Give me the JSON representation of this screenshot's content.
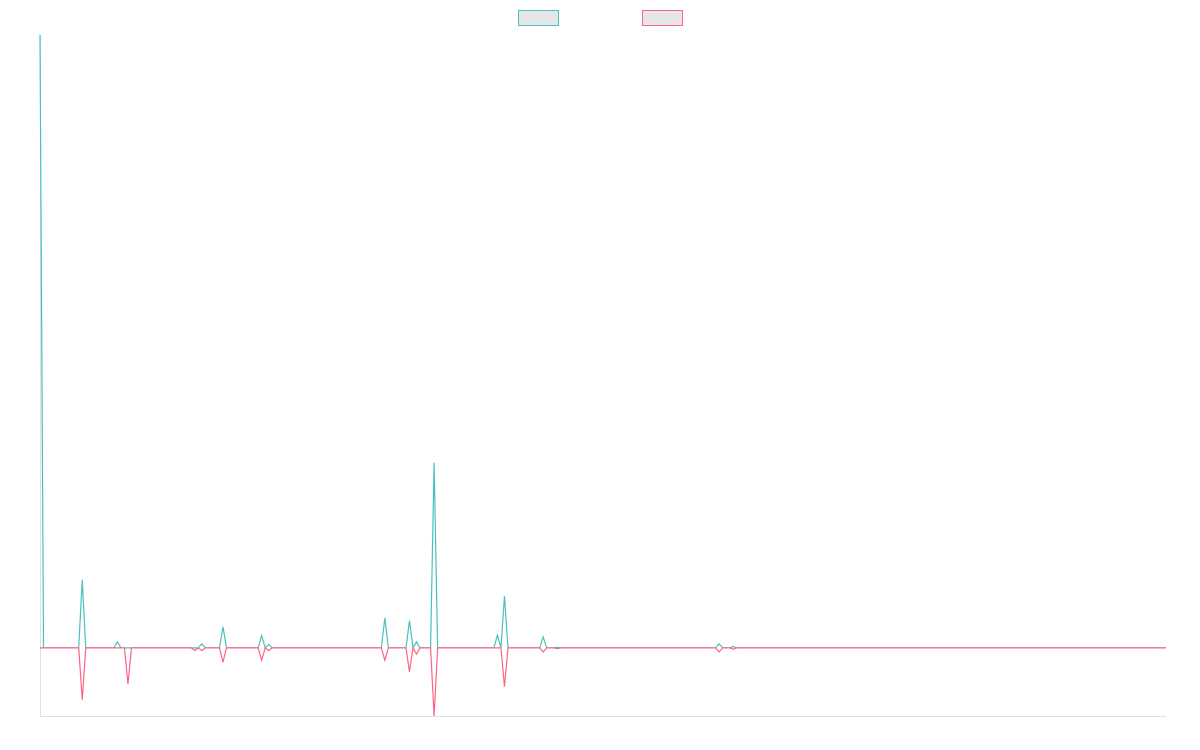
{
  "chart_data": {
    "type": "line",
    "x": [
      0,
      1,
      11,
      12,
      13,
      21,
      22,
      23,
      24,
      25,
      26,
      43,
      44,
      45,
      46,
      47,
      51,
      52,
      53,
      62,
      63,
      64,
      65,
      66,
      97,
      98,
      99,
      104,
      105,
      106,
      107,
      108,
      111,
      112,
      113,
      129,
      130,
      131,
      132,
      133,
      142,
      143,
      144,
      146,
      147,
      148,
      192,
      193,
      194,
      196,
      197,
      198,
      320
    ],
    "xlim": [
      0,
      320
    ],
    "ylim": [
      -10,
      90
    ],
    "series": [
      {
        "color": "#4bc0c0",
        "values": [
          90,
          0,
          0,
          10,
          0,
          0,
          0.9,
          0,
          0,
          0,
          0,
          0,
          0,
          0,
          0.6,
          0,
          0,
          3.1,
          0,
          0,
          1.8,
          0,
          0.5,
          0,
          0,
          4.4,
          0,
          0,
          4.0,
          0,
          0.9,
          0,
          0,
          27.2,
          0,
          0,
          1.9,
          0,
          7.6,
          0,
          0,
          1.6,
          0,
          0,
          0.1,
          0,
          0,
          0.6,
          0,
          0,
          0.2,
          0,
          0
        ]
      },
      {
        "color": "#ff6384",
        "values": [
          0,
          0,
          0,
          -7.6,
          0,
          0,
          0,
          0,
          0,
          -5.3,
          0,
          0,
          -0.4,
          0,
          -0.4,
          0,
          0,
          -2.1,
          0,
          0,
          -1.8,
          0,
          -0.4,
          0,
          0,
          -1.8,
          0,
          0,
          -3.5,
          0,
          -0.9,
          0,
          0,
          -10,
          0,
          0,
          0,
          0,
          -5.7,
          0,
          0,
          -0.6,
          0,
          0,
          -0.1,
          0,
          0,
          -0.6,
          0,
          0,
          -0.2,
          0,
          0
        ]
      }
    ]
  }
}
